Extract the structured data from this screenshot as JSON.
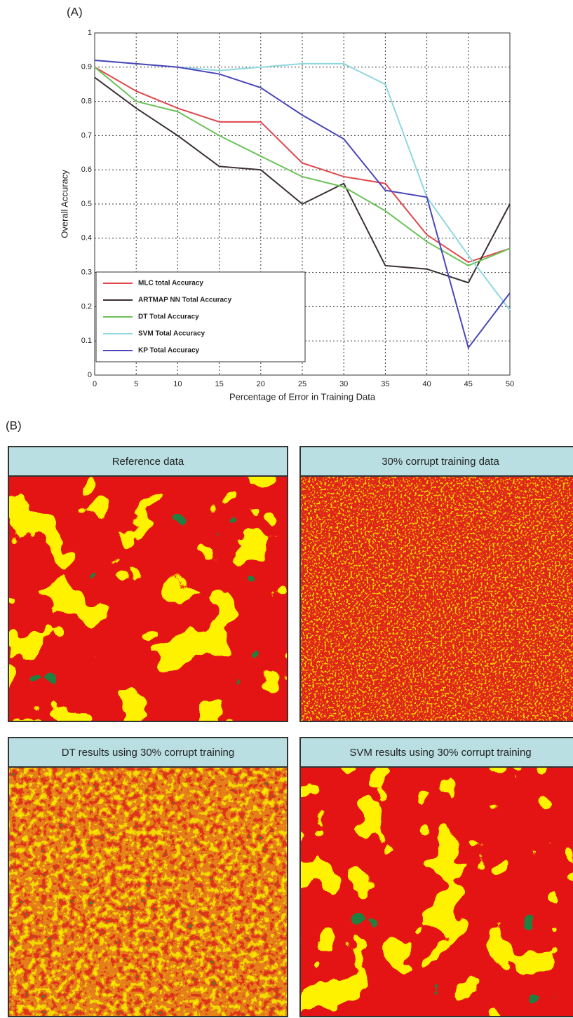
{
  "chart_data": {
    "type": "line",
    "xlabel": "Percentage of Error in Training Data",
    "ylabel": "Overall Accuracy",
    "x": [
      0,
      5,
      10,
      15,
      20,
      25,
      30,
      35,
      40,
      45,
      50
    ],
    "xlim": [
      0,
      50
    ],
    "xticks": [
      0,
      5,
      10,
      15,
      20,
      25,
      30,
      35,
      40,
      45,
      50
    ],
    "ylim": [
      0,
      1
    ],
    "yticks": [
      0,
      0.1,
      0.2,
      0.3,
      0.4,
      0.5,
      0.6,
      0.7,
      0.8,
      0.9,
      1
    ],
    "grid": true,
    "legend": "lower left",
    "series": [
      {
        "name": "MLC total Accuracy",
        "color": "#e0474c",
        "values": [
          0.9,
          0.83,
          0.78,
          0.74,
          0.74,
          0.62,
          0.58,
          0.56,
          0.41,
          0.33,
          0.37
        ]
      },
      {
        "name": "ARTMAP NN Total Accuracy",
        "color": "#3a3030",
        "values": [
          0.87,
          0.78,
          0.7,
          0.61,
          0.6,
          0.5,
          0.56,
          0.32,
          0.31,
          0.27,
          0.5
        ]
      },
      {
        "name": "DT Total Accuracy",
        "color": "#6cc25a",
        "values": [
          0.9,
          0.8,
          0.77,
          0.7,
          0.64,
          0.58,
          0.55,
          0.48,
          0.39,
          0.32,
          0.37
        ]
      },
      {
        "name": "SVM Total Accuracy",
        "color": "#8fd8e0",
        "values": [
          0.92,
          0.91,
          0.9,
          0.89,
          0.9,
          0.91,
          0.91,
          0.85,
          0.52,
          0.35,
          0.19
        ]
      },
      {
        "name": "KP Total Accuracy",
        "color": "#4a46b8",
        "values": [
          0.92,
          0.91,
          0.9,
          0.88,
          0.84,
          0.76,
          0.69,
          0.54,
          0.52,
          0.08,
          0.24
        ]
      }
    ]
  },
  "panels": {
    "a_label": "(A)",
    "b_label": "(B)",
    "maps": [
      {
        "title": "Reference data"
      },
      {
        "title": "30% corrupt training data"
      },
      {
        "title": "DT results using 30% corrupt training"
      },
      {
        "title": "SVM results using 30% corrupt training"
      }
    ]
  }
}
